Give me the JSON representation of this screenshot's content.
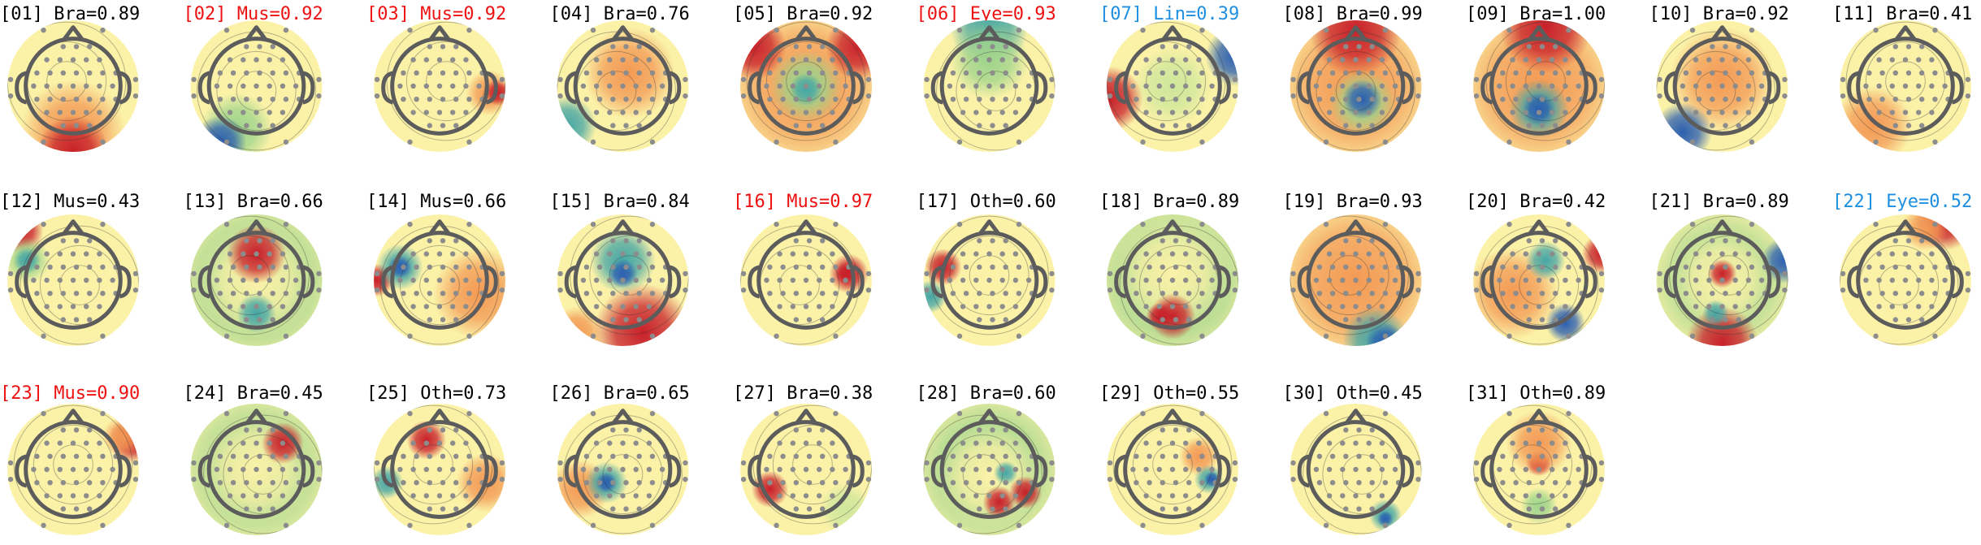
{
  "components": [
    {
      "title": "[01] Bra=0.89",
      "color": "#000000"
    },
    {
      "title": "[02] Mus=0.92",
      "color": "#ee1111"
    },
    {
      "title": "[03] Mus=0.92",
      "color": "#ee1111"
    },
    {
      "title": "[04] Bra=0.76",
      "color": "#000000"
    },
    {
      "title": "[05] Bra=0.92",
      "color": "#000000"
    },
    {
      "title": "[06] Eye=0.93",
      "color": "#ee1111"
    },
    {
      "title": "[07] Lin=0.39",
      "color": "#1e8fe0"
    },
    {
      "title": "[08] Bra=0.99",
      "color": "#000000"
    },
    {
      "title": "[09] Bra=1.00",
      "color": "#000000"
    },
    {
      "title": "[10] Bra=0.92",
      "color": "#000000"
    },
    {
      "title": "[11] Bra=0.41",
      "color": "#000000"
    },
    {
      "title": "[12] Mus=0.43",
      "color": "#000000"
    },
    {
      "title": "[13] Bra=0.66",
      "color": "#000000"
    },
    {
      "title": "[14] Mus=0.66",
      "color": "#000000"
    },
    {
      "title": "[15] Bra=0.84",
      "color": "#000000"
    },
    {
      "title": "[16] Mus=0.97",
      "color": "#ee1111"
    },
    {
      "title": "[17] Oth=0.60",
      "color": "#000000"
    },
    {
      "title": "[18] Bra=0.89",
      "color": "#000000"
    },
    {
      "title": "[19] Bra=0.93",
      "color": "#000000"
    },
    {
      "title": "[20] Bra=0.42",
      "color": "#000000"
    },
    {
      "title": "[21] Bra=0.89",
      "color": "#000000"
    },
    {
      "title": "[22] Eye=0.52",
      "color": "#1e8fe0"
    },
    {
      "title": "[23] Mus=0.90",
      "color": "#ee1111"
    },
    {
      "title": "[24] Bra=0.45",
      "color": "#000000"
    },
    {
      "title": "[25] Oth=0.73",
      "color": "#000000"
    },
    {
      "title": "[26] Bra=0.65",
      "color": "#000000"
    },
    {
      "title": "[27] Bra=0.38",
      "color": "#000000"
    },
    {
      "title": "[28] Bra=0.60",
      "color": "#000000"
    },
    {
      "title": "[29] Oth=0.55",
      "color": "#000000"
    },
    {
      "title": "[30] Oth=0.45",
      "color": "#000000"
    },
    {
      "title": "[31] Oth=0.89",
      "color": "#000000"
    }
  ]
}
